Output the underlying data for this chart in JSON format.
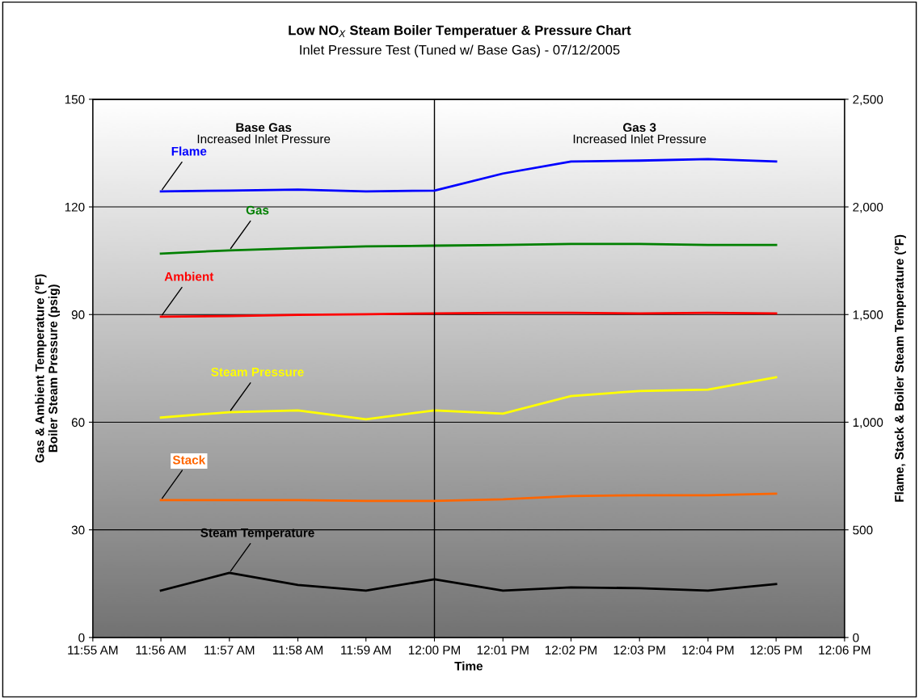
{
  "chart_data": {
    "type": "line",
    "title": "Low NO$_{X}$ Steam Boiler Temperatuer & Pressure Chart",
    "subtitle": "Inlet Pressure Test (Tuned w/ Base Gas) - 07/12/2005",
    "xlabel": "Time",
    "ylabel": "Gas & Ambient Temperature (°F)\nBoiler Steam Pressure (psig)",
    "y2label": "Flame, Stack & Boiler Steam Temperature (°F)",
    "x": [
      11.9333,
      11.95,
      11.9667,
      11.9833,
      12.0,
      12.0167,
      12.0333,
      12.05,
      12.0667,
      12.0833
    ],
    "series": [
      {
        "name": "Flame",
        "color": "#0000ff",
        "axis": "y2",
        "values": [
          2072,
          2076,
          2080,
          2072,
          2076,
          2155,
          2211,
          2215,
          2222,
          2211
        ]
      },
      {
        "name": "Gas",
        "color": "#008000",
        "values": [
          107.0,
          107.9,
          108.5,
          109.0,
          109.2,
          109.4,
          109.7,
          109.7,
          109.4,
          109.4
        ]
      },
      {
        "name": "Ambient",
        "color": "#ff0000",
        "values": [
          89.4,
          89.6,
          89.9,
          90.1,
          90.3,
          90.5,
          90.5,
          90.3,
          90.5,
          90.3
        ]
      },
      {
        "name": "Steam Pressure",
        "color": "#ffff00",
        "values": [
          61.3,
          62.8,
          63.3,
          60.8,
          63.3,
          62.4,
          67.3,
          68.7,
          69.1,
          72.5
        ]
      },
      {
        "name": "Stack",
        "color": "#ff6600",
        "axis": "y2",
        "values": [
          638,
          638,
          638,
          634,
          634,
          642,
          657,
          661,
          661,
          668
        ]
      },
      {
        "name": "Steam Temperature",
        "color": "#000000",
        "axis": "y2",
        "values": [
          218,
          300,
          244,
          218,
          270,
          218,
          233,
          229,
          218,
          248
        ]
      }
    ],
    "xlim": [
      11.9167,
      12.1
    ],
    "xticks": [
      {
        "value": 11.9167,
        "label": "11:55 AM"
      },
      {
        "value": 11.9333,
        "label": "11:56 AM"
      },
      {
        "value": 11.95,
        "label": "11:57 AM"
      },
      {
        "value": 11.9667,
        "label": "11:58 AM"
      },
      {
        "value": 11.9833,
        "label": "11:59 AM"
      },
      {
        "value": 12.0,
        "label": "12:00 PM"
      },
      {
        "value": 12.0167,
        "label": "12:01 PM"
      },
      {
        "value": 12.0333,
        "label": "12:02 PM"
      },
      {
        "value": 12.05,
        "label": "12:03 PM"
      },
      {
        "value": 12.0667,
        "label": "12:04 PM"
      },
      {
        "value": 12.0833,
        "label": "12:05 PM"
      },
      {
        "value": 12.1,
        "label": "12:06 PM"
      }
    ],
    "ylim": [
      0,
      150
    ],
    "yticks": [
      0,
      30,
      60,
      90,
      120,
      150
    ],
    "y2lim": [
      0,
      2500
    ],
    "y2ticks": [
      0,
      {
        "value": 500,
        "label": "500"
      },
      {
        "value": 1000,
        "label": "1,000"
      },
      {
        "value": 1500,
        "label": "1,500"
      },
      {
        "value": 2000,
        "label": "2,000"
      },
      {
        "value": 2500,
        "label": "2,500"
      }
    ],
    "ref_lines": [
      {
        "axis": "x",
        "value": 12.0,
        "color": "#000000"
      }
    ],
    "annotations": [
      "Base Gas\nIncreased Inlet Pressure",
      "Gas 3\nIncreased Inlet Pressure"
    ],
    "grid": "y",
    "legend": false,
    "marker": "none",
    "line_style": "solid"
  }
}
